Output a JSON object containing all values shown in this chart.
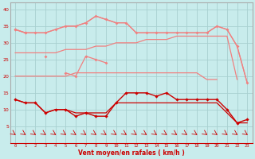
{
  "x": [
    0,
    1,
    2,
    3,
    4,
    5,
    6,
    7,
    8,
    9,
    10,
    11,
    12,
    13,
    14,
    15,
    16,
    17,
    18,
    19,
    20,
    21,
    22,
    23
  ],
  "line_top_nomarker": [
    34,
    33,
    33,
    33,
    34,
    35,
    35,
    36,
    38,
    37,
    36,
    36,
    33,
    33,
    33,
    33,
    33,
    33,
    33,
    33,
    35,
    34,
    29,
    18
  ],
  "line_upper_marker": [
    34,
    33,
    null,
    26,
    null,
    21,
    20,
    26,
    25,
    24,
    null,
    null,
    null,
    null,
    null,
    null,
    null,
    null,
    null,
    null,
    null,
    null,
    null,
    null
  ],
  "line_mid_upper": [
    27,
    27,
    27,
    27,
    27,
    28,
    28,
    28,
    29,
    29,
    30,
    30,
    30,
    31,
    31,
    31,
    32,
    32,
    32,
    32,
    32,
    32,
    19,
    null
  ],
  "line_mid_lower": [
    20,
    20,
    20,
    20,
    20,
    20,
    21,
    21,
    21,
    21,
    21,
    21,
    21,
    21,
    21,
    21,
    21,
    21,
    21,
    19,
    19,
    null,
    null,
    null
  ],
  "line_dark_marker": [
    13,
    12,
    12,
    9,
    10,
    10,
    8,
    9,
    8,
    8,
    12,
    15,
    15,
    15,
    14,
    15,
    13,
    13,
    13,
    13,
    13,
    10,
    6,
    7
  ],
  "line_dark_plain": [
    13,
    12,
    12,
    9,
    10,
    10,
    9,
    9,
    9,
    9,
    12,
    12,
    12,
    12,
    12,
    12,
    12,
    12,
    12,
    12,
    12,
    9,
    6,
    6
  ],
  "bg_color": "#c8ecec",
  "grid_color": "#a8d0d0",
  "line_color_light": "#f08080",
  "line_color_dark": "#cc0000",
  "arrow_color": "#cc0000",
  "xlabel": "Vent moyen/en rafales ( km/h )",
  "yticks": [
    5,
    10,
    15,
    20,
    25,
    30,
    35,
    40
  ],
  "xlim": [
    -0.5,
    23.5
  ],
  "ylim": [
    0,
    42
  ]
}
